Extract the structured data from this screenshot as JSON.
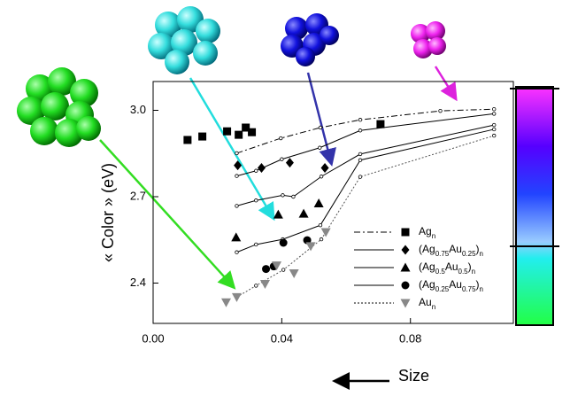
{
  "chart_data": {
    "type": "scatter",
    "ylabel": "« Color » (eV)",
    "xlabel": "Size",
    "xlim": [
      0,
      0.112
    ],
    "ylim": [
      2.26,
      3.1
    ],
    "xticks": [
      {
        "value": 0,
        "label": "0.00"
      },
      {
        "value": 0.04,
        "label": "0.04"
      },
      {
        "value": 0.08,
        "label": "0.08"
      }
    ],
    "yticks": [
      2.4,
      2.7,
      {
        "value": 3,
        "label": "3.0"
      }
    ],
    "legend": "lower right",
    "series": [
      {
        "name": "Agn",
        "color": "#000000",
        "marker": "square",
        "dash": "7 3 2 3",
        "x": [
          0.0107,
          0.0153,
          0.023,
          0.0266,
          0.0288,
          0.0307,
          0.0707
        ],
        "values": [
          2.897,
          2.909,
          2.927,
          2.915,
          2.94,
          2.924,
          2.952
        ],
        "line_x": [
          0.026,
          0.0397,
          0.052,
          0.0644,
          0.0893,
          0.106
        ],
        "line_values": [
          2.851,
          2.903,
          2.94,
          2.967,
          2.998,
          3.004
        ]
      },
      {
        "name": "(Ag0.75Au0.25)n",
        "color": "#000000",
        "marker": "diamond",
        "dash": "none",
        "x": [
          0.0263,
          0.0337,
          0.0425,
          0.0534
        ],
        "values": [
          2.809,
          2.8,
          2.818,
          2.8
        ],
        "line_x": [
          0.026,
          0.032,
          0.04,
          0.0518,
          0.0644,
          0.106
        ],
        "line_values": [
          2.772,
          2.79,
          2.83,
          2.87,
          2.93,
          2.988
        ]
      },
      {
        "name": "(Ag0.5Au0.5)n",
        "color": "#000000",
        "marker": "triangle",
        "dash": "none",
        "x": [
          0.0258,
          0.0389,
          0.0468,
          0.0515
        ],
        "values": [
          2.559,
          2.638,
          2.641,
          2.677
        ],
        "line_x": [
          0.026,
          0.032,
          0.0403,
          0.0436,
          0.0523,
          0.0644,
          0.106
        ],
        "line_values": [
          2.668,
          2.687,
          2.705,
          2.7,
          2.77,
          2.848,
          2.949
        ]
      },
      {
        "name": "(Ag0.25Au0.75)n",
        "color": "#000000",
        "marker": "circle",
        "dash": "none",
        "x": [
          0.0351,
          0.0375,
          0.0405,
          0.0479
        ],
        "values": [
          2.449,
          2.458,
          2.54,
          2.549
        ],
        "line_x": [
          0.026,
          0.032,
          0.0403,
          0.052,
          0.0644,
          0.106
        ],
        "line_values": [
          2.507,
          2.534,
          2.552,
          2.601,
          2.827,
          2.934
        ]
      },
      {
        "name": "Aun",
        "color": "#888888",
        "marker": "triangle-down",
        "dash": "2 2",
        "x": [
          0.0227,
          0.026,
          0.0348,
          0.0384,
          0.0438,
          0.049,
          0.0537
        ],
        "values": [
          2.333,
          2.351,
          2.397,
          2.461,
          2.434,
          2.528,
          2.577
        ],
        "line_x": [
          0.026,
          0.032,
          0.0405,
          0.0523,
          0.0644,
          0.106
        ],
        "line_values": [
          2.351,
          2.391,
          2.446,
          2.552,
          2.769,
          2.912
        ]
      }
    ]
  }
}
